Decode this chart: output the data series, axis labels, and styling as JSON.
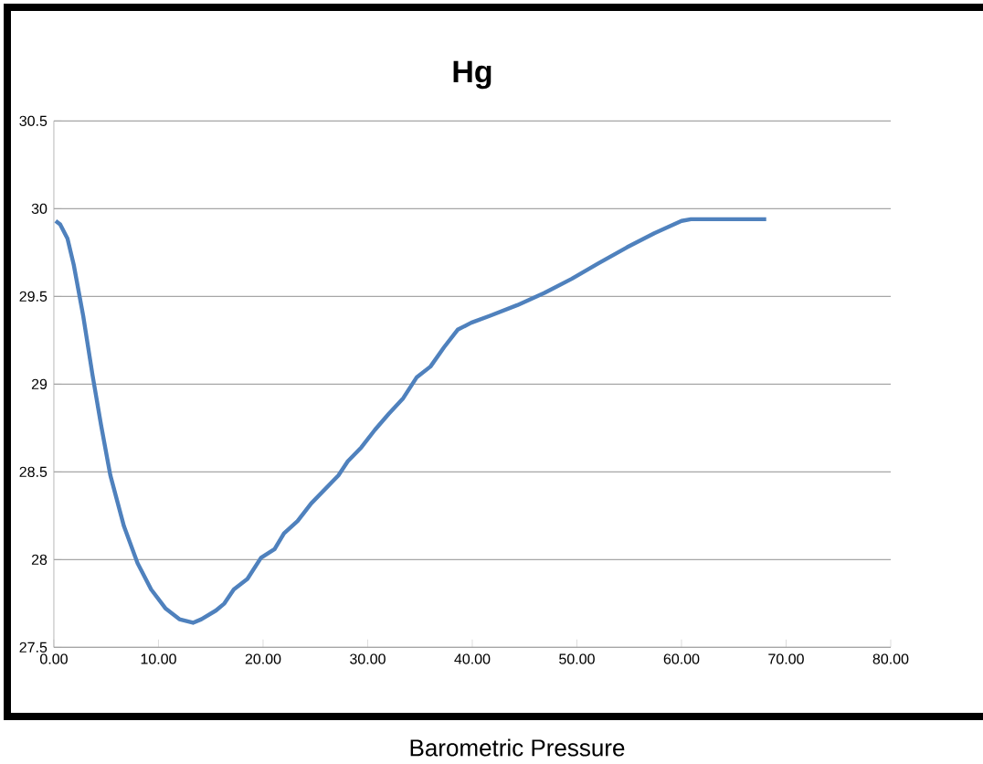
{
  "chart_data": {
    "type": "line",
    "title": "Hg",
    "annotations": [
      "Barometric Pressure"
    ],
    "x": [
      0.17,
      0.6,
      1.3,
      1.9,
      2.8,
      3.7,
      4.5,
      5.4,
      6.7,
      8.0,
      9.3,
      10.7,
      12.0,
      13.3,
      14.1,
      15.5,
      16.3,
      17.2,
      18.5,
      19.8,
      21.1,
      22.0,
      23.3,
      24.6,
      25.9,
      27.2,
      28.1,
      29.4,
      30.7,
      32.0,
      33.4,
      34.7,
      36.0,
      37.3,
      38.6,
      39.9,
      41.7,
      44.3,
      46.9,
      49.5,
      52.1,
      54.8,
      57.4,
      60.0,
      60.9,
      68.1
    ],
    "values": [
      29.93,
      29.91,
      29.83,
      29.68,
      29.39,
      29.05,
      28.77,
      28.48,
      28.19,
      27.98,
      27.83,
      27.72,
      27.66,
      27.64,
      27.66,
      27.71,
      27.75,
      27.83,
      27.89,
      28.01,
      28.06,
      28.15,
      28.22,
      28.32,
      28.4,
      28.48,
      28.56,
      28.64,
      28.74,
      28.83,
      28.92,
      29.04,
      29.1,
      29.21,
      29.31,
      29.35,
      29.39,
      29.45,
      29.52,
      29.6,
      29.69,
      29.78,
      29.86,
      29.93,
      29.94,
      29.94
    ],
    "color": "#4f81bd",
    "xlim": [
      0,
      80
    ],
    "ylim": [
      27.5,
      30.5
    ],
    "xticks": [
      {
        "value": 0,
        "label": "0.00"
      },
      {
        "value": 10,
        "label": "10.00"
      },
      {
        "value": 20,
        "label": "20.00"
      },
      {
        "value": 30,
        "label": "30.00"
      },
      {
        "value": 40,
        "label": "40.00"
      },
      {
        "value": 50,
        "label": "50.00"
      },
      {
        "value": 60,
        "label": "60.00"
      },
      {
        "value": 70,
        "label": "70.00"
      },
      {
        "value": 80,
        "label": "80.00"
      }
    ],
    "yticks": [
      27.5,
      28,
      28.5,
      29,
      29.5,
      30,
      30.5
    ],
    "grid": "y",
    "marker": "none",
    "line_style": "solid"
  }
}
